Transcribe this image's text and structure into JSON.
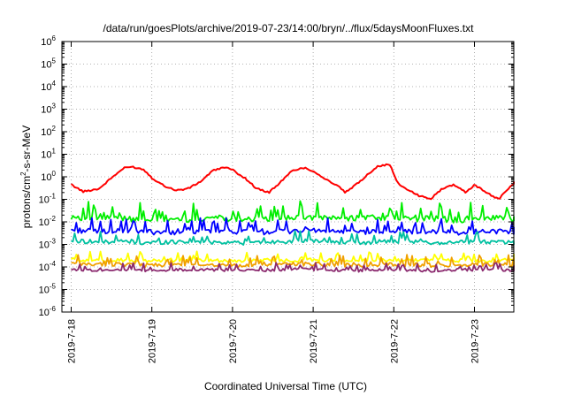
{
  "chart_data": {
    "type": "line",
    "title": "/data/run/goesPlots/archive/2019-07-23/14:00/bryn/../flux/5daysMoonFluxes.txt",
    "xlabel": "Coordinated Universal Time (UTC)",
    "ylabel": "protons/cm²-s-sr-MeV",
    "ylabel_parts": {
      "base": "protons/cm",
      "exp": "2",
      "rest": "-s-sr-MeV"
    },
    "y_scale": "log",
    "ylim_exp": [
      -6,
      6
    ],
    "y_ticks": [
      {
        "base": "10",
        "exp": "6"
      },
      {
        "base": "10",
        "exp": "5"
      },
      {
        "base": "10",
        "exp": "4"
      },
      {
        "base": "10",
        "exp": "3"
      },
      {
        "base": "10",
        "exp": "2"
      },
      {
        "base": "10",
        "exp": "1"
      },
      {
        "base": "10",
        "exp": "0"
      },
      {
        "base": "10",
        "exp": "-1"
      },
      {
        "base": "10",
        "exp": "-2"
      },
      {
        "base": "10",
        "exp": "-3"
      },
      {
        "base": "10",
        "exp": "-4"
      },
      {
        "base": "10",
        "exp": "-5"
      },
      {
        "base": "10",
        "exp": "-6"
      }
    ],
    "x_ticks": [
      "2019-7-18",
      "2019-7-19",
      "2019-7-20",
      "2019-7-21",
      "2019-7-22",
      "2019-7-23"
    ],
    "xlim_days": [
      0,
      5.55
    ],
    "grid": true,
    "series": [
      {
        "color": "#ff0000",
        "x": [
          0,
          0.15,
          0.35,
          0.5,
          0.65,
          0.75,
          0.9,
          1.0,
          1.15,
          1.3,
          1.45,
          1.6,
          1.75,
          1.9,
          2.0,
          2.15,
          2.3,
          2.45,
          2.6,
          2.75,
          2.9,
          3.0,
          3.15,
          3.3,
          3.4,
          3.55,
          3.7,
          3.8,
          3.95,
          4.05,
          4.15,
          4.3,
          4.45,
          4.6,
          4.75,
          4.9,
          5.0,
          5.15,
          5.3,
          5.45,
          5.55
        ],
        "y": [
          0.45,
          0.22,
          0.3,
          0.9,
          2.4,
          2.8,
          2.1,
          0.9,
          0.4,
          0.25,
          0.3,
          0.6,
          1.8,
          2.7,
          2.0,
          0.9,
          0.3,
          0.2,
          0.6,
          2.0,
          2.5,
          1.8,
          0.8,
          0.4,
          0.2,
          0.5,
          1.5,
          3.0,
          3.5,
          0.5,
          0.3,
          0.15,
          0.1,
          0.3,
          0.45,
          0.2,
          0.45,
          0.2,
          0.1,
          0.4,
          0.6
        ]
      },
      {
        "color": "#00ee00",
        "x": [
          0,
          0.3,
          0.6,
          0.9,
          1.2,
          1.5,
          1.8,
          2.1,
          2.4,
          2.7,
          3.0,
          3.3,
          3.6,
          3.9,
          4.2,
          4.5,
          4.8,
          5.1,
          5.4,
          5.55
        ],
        "y": [
          0.018,
          0.015,
          0.016,
          0.014,
          0.013,
          0.014,
          0.016,
          0.015,
          0.014,
          0.017,
          0.016,
          0.015,
          0.016,
          0.017,
          0.014,
          0.015,
          0.013,
          0.016,
          0.015,
          0.014
        ]
      },
      {
        "color": "#0000ff",
        "x": [
          0,
          0.3,
          0.6,
          0.9,
          1.2,
          1.5,
          1.8,
          2.1,
          2.4,
          2.7,
          3.0,
          3.3,
          3.6,
          3.9,
          4.2,
          4.5,
          4.8,
          5.1,
          5.4,
          5.55
        ],
        "y": [
          0.0045,
          0.004,
          0.0042,
          0.0038,
          0.0036,
          0.004,
          0.0042,
          0.0039,
          0.0037,
          0.0041,
          0.0043,
          0.0038,
          0.0035,
          0.0042,
          0.004,
          0.0038,
          0.0036,
          0.004,
          0.0039,
          0.0037
        ]
      },
      {
        "color": "#00c0a0",
        "x": [
          0,
          0.3,
          0.6,
          0.9,
          1.2,
          1.5,
          1.8,
          2.1,
          2.4,
          2.7,
          3.0,
          3.3,
          3.6,
          3.9,
          4.2,
          4.5,
          4.8,
          5.1,
          5.4,
          5.55
        ],
        "y": [
          0.0015,
          0.0013,
          0.0014,
          0.0012,
          0.0013,
          0.0014,
          0.0013,
          0.0012,
          0.0013,
          0.0014,
          0.0015,
          0.0013,
          0.0012,
          0.0014,
          0.0013,
          0.0012,
          0.0013,
          0.0014,
          0.0013,
          0.0012
        ]
      },
      {
        "color": "#ffff00",
        "x": [
          0,
          0.3,
          0.6,
          0.9,
          1.2,
          1.5,
          1.8,
          2.1,
          2.4,
          2.7,
          3.0,
          3.3,
          3.6,
          3.9,
          4.2,
          4.5,
          4.8,
          5.1,
          5.4,
          5.55
        ],
        "y": [
          0.00022,
          0.0002,
          0.00021,
          0.00019,
          0.0002,
          0.00022,
          0.0002,
          0.00019,
          0.00021,
          0.0002,
          0.00022,
          0.0002,
          0.00019,
          0.00021,
          0.0002,
          0.00022,
          0.0002,
          0.00019,
          0.00021,
          0.0002
        ]
      },
      {
        "color": "#f0a000",
        "x": [
          0,
          0.3,
          0.6,
          0.9,
          1.2,
          1.5,
          1.8,
          2.1,
          2.4,
          2.7,
          3.0,
          3.3,
          3.6,
          3.9,
          4.2,
          4.5,
          4.8,
          5.1,
          5.4,
          5.55
        ],
        "y": [
          0.00014,
          0.00013,
          0.00014,
          0.00012,
          0.00013,
          0.00014,
          0.00013,
          0.00012,
          0.00013,
          0.00014,
          0.00014,
          0.00013,
          0.00012,
          0.00014,
          0.00013,
          0.00012,
          0.00013,
          0.00014,
          0.00013,
          0.00012
        ]
      },
      {
        "color": "#8b2a6f",
        "x": [
          0,
          0.3,
          0.6,
          0.9,
          1.2,
          1.5,
          1.8,
          2.1,
          2.4,
          2.7,
          3.0,
          3.3,
          3.6,
          3.9,
          4.2,
          4.5,
          4.8,
          5.1,
          5.4,
          5.55
        ],
        "y": [
          8e-05,
          7.5e-05,
          8e-05,
          7e-05,
          7.5e-05,
          8e-05,
          7.5e-05,
          7e-05,
          7.5e-05,
          8e-05,
          8e-05,
          7.5e-05,
          7e-05,
          8e-05,
          7.5e-05,
          7e-05,
          7.5e-05,
          8e-05,
          7.5e-05,
          7e-05
        ]
      }
    ]
  }
}
